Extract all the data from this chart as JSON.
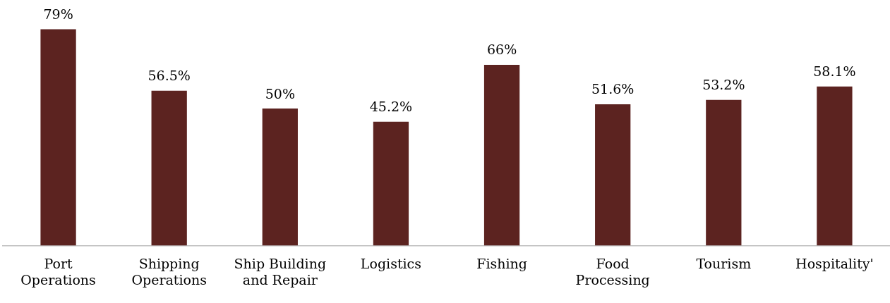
{
  "chart_data": {
    "type": "bar",
    "categories": [
      "Port Operations",
      "Shipping Operations",
      "Ship Building and Repair",
      "Logistics",
      "Fishing",
      "Food Processing",
      "Tourism",
      "Hospitality'"
    ],
    "values": [
      79,
      56.5,
      50,
      45.2,
      66,
      51.6,
      53.2,
      58.1
    ],
    "value_labels": [
      "79%",
      "56.5%",
      "50%",
      "45.2%",
      "66%",
      "51.6%",
      "53.2%",
      "58.1%"
    ],
    "color": "#5c2320",
    "grid": false,
    "legend": false
  }
}
